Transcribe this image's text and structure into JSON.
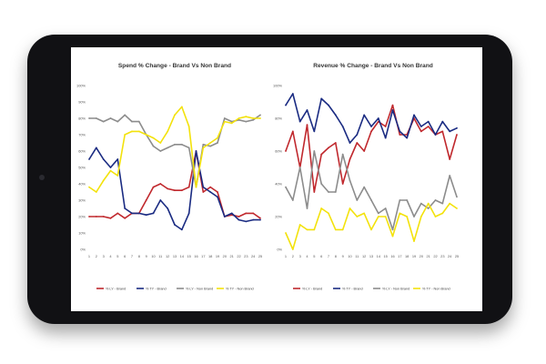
{
  "chart_data": [
    {
      "type": "line",
      "title": "Spend % Change - Brand Vs Non Brand",
      "xlabel": "",
      "ylabel": "",
      "x": [
        1,
        2,
        3,
        4,
        5,
        6,
        7,
        8,
        9,
        10,
        11,
        12,
        13,
        14,
        15,
        16,
        17,
        18,
        19,
        20,
        21,
        22,
        23,
        24,
        25
      ],
      "ylim": [
        0,
        100
      ],
      "yticks": [
        "0%",
        "10%",
        "20%",
        "30%",
        "40%",
        "50%",
        "60%",
        "70%",
        "80%",
        "90%",
        "100%"
      ],
      "legend": "bottom",
      "series": [
        {
          "name": "% LY - Brand",
          "color": "#c0282d",
          "values": [
            20,
            20,
            20,
            19,
            22,
            19,
            22,
            22,
            30,
            38,
            40,
            37,
            36,
            36,
            38,
            60,
            35,
            38,
            35,
            20,
            21,
            20,
            22,
            22,
            19
          ]
        },
        {
          "name": "% TY - Brand",
          "color": "#1a2b82",
          "values": [
            55,
            62,
            55,
            50,
            55,
            25,
            22,
            22,
            21,
            22,
            30,
            25,
            15,
            12,
            22,
            60,
            38,
            35,
            32,
            20,
            22,
            18,
            17,
            18,
            18
          ]
        },
        {
          "name": "% LY - Non Brand",
          "color": "#8c8c8c",
          "values": [
            80,
            80,
            78,
            80,
            78,
            82,
            78,
            78,
            70,
            63,
            60,
            62,
            64,
            64,
            62,
            38,
            64,
            63,
            65,
            80,
            78,
            79,
            78,
            79,
            82
          ]
        },
        {
          "name": "% TY - Non Brand",
          "color": "#f3e20c",
          "values": [
            38,
            35,
            42,
            48,
            45,
            70,
            72,
            72,
            70,
            68,
            65,
            72,
            82,
            87,
            75,
            38,
            62,
            65,
            68,
            78,
            77,
            80,
            81,
            80,
            80
          ]
        }
      ]
    },
    {
      "type": "line",
      "title": "Revenue % Change - Brand Vs Non Brand",
      "xlabel": "",
      "ylabel": "",
      "x": [
        1,
        2,
        3,
        4,
        5,
        6,
        7,
        8,
        9,
        10,
        11,
        12,
        13,
        14,
        15,
        16,
        17,
        18,
        19,
        20,
        21,
        22,
        23,
        24,
        25
      ],
      "ylim": [
        0,
        100
      ],
      "yticks": [
        "0%",
        "20%",
        "40%",
        "60%",
        "80%",
        "100%"
      ],
      "legend": "bottom",
      "series": [
        {
          "name": "% LY - Brand",
          "color": "#c0282d",
          "values": [
            60,
            72,
            50,
            76,
            35,
            58,
            62,
            65,
            40,
            55,
            65,
            60,
            72,
            78,
            75,
            88,
            70,
            70,
            80,
            72,
            75,
            70,
            72,
            55,
            70
          ]
        },
        {
          "name": "% TY - Brand",
          "color": "#1a2b82",
          "values": [
            88,
            95,
            78,
            85,
            72,
            92,
            88,
            82,
            75,
            65,
            70,
            82,
            75,
            80,
            68,
            85,
            72,
            68,
            82,
            75,
            78,
            70,
            78,
            72,
            74
          ]
        },
        {
          "name": "% LY - Non Brand",
          "color": "#8c8c8c",
          "values": [
            38,
            30,
            50,
            25,
            60,
            40,
            35,
            35,
            58,
            42,
            30,
            38,
            30,
            22,
            25,
            12,
            30,
            30,
            20,
            28,
            25,
            30,
            28,
            45,
            32
          ]
        },
        {
          "name": "% TY - Non Brand",
          "color": "#f3e20c",
          "values": [
            10,
            0,
            15,
            12,
            12,
            25,
            22,
            12,
            12,
            25,
            20,
            22,
            12,
            20,
            20,
            8,
            22,
            20,
            5,
            20,
            28,
            20,
            22,
            28,
            25
          ]
        }
      ]
    }
  ]
}
